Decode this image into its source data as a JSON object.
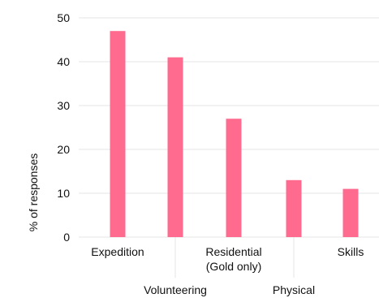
{
  "chart_data": {
    "type": "bar",
    "categories": [
      "Expedition",
      "Volunteering",
      "Residential (Gold only)",
      "Physical",
      "Skills"
    ],
    "category_label_lines": [
      [
        "Expedition"
      ],
      [
        "Volunteering"
      ],
      [
        "Residential",
        "(Gold only)"
      ],
      [
        "Physical"
      ],
      [
        "Skills"
      ]
    ],
    "values": [
      47,
      41,
      27,
      13,
      11
    ],
    "ylabel": "% of responses",
    "xlabel": "",
    "ylim": [
      0,
      50
    ],
    "yticks": [
      0,
      10,
      20,
      30,
      40,
      50
    ],
    "grid": "horizontal",
    "bar_color": "#ff6b8f",
    "grid_color": "#e5e5e5"
  }
}
